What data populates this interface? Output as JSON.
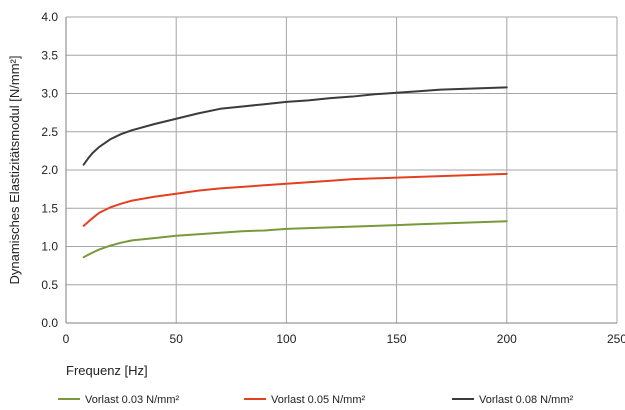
{
  "chart_data": {
    "type": "line",
    "xlabel": "Frequenz [Hz]",
    "ylabel": "Dynamisches Elastizitätsmodul [N/mm²]",
    "xlim": [
      0,
      250
    ],
    "ylim": [
      0,
      4.0
    ],
    "x_ticks": [
      "0",
      "50",
      "100",
      "150",
      "200",
      "250"
    ],
    "y_ticks": [
      "0.0",
      "0.5",
      "1.0",
      "1.5",
      "2.0",
      "2.5",
      "3.0",
      "3.5",
      "4.0"
    ],
    "grid": true,
    "legend_position": "bottom",
    "series": [
      {
        "name": "Vorlast 0.03 N/mm²",
        "color": "#779a3a",
        "x": [
          8,
          10,
          12,
          15,
          20,
          25,
          30,
          40,
          50,
          60,
          70,
          80,
          90,
          100,
          110,
          120,
          130,
          140,
          150,
          160,
          170,
          180,
          190,
          200
        ],
        "values": [
          0.86,
          0.89,
          0.92,
          0.96,
          1.01,
          1.05,
          1.08,
          1.11,
          1.14,
          1.16,
          1.18,
          1.2,
          1.21,
          1.23,
          1.24,
          1.25,
          1.26,
          1.27,
          1.28,
          1.29,
          1.3,
          1.31,
          1.32,
          1.33
        ]
      },
      {
        "name": "Vorlast 0.05 N/mm²",
        "color": "#e3401f",
        "x": [
          8,
          10,
          12,
          15,
          20,
          25,
          30,
          40,
          50,
          60,
          70,
          80,
          90,
          100,
          110,
          120,
          130,
          140,
          150,
          160,
          170,
          180,
          190,
          200
        ],
        "values": [
          1.27,
          1.32,
          1.37,
          1.44,
          1.51,
          1.56,
          1.6,
          1.65,
          1.69,
          1.73,
          1.76,
          1.78,
          1.8,
          1.82,
          1.84,
          1.86,
          1.88,
          1.89,
          1.9,
          1.91,
          1.92,
          1.93,
          1.94,
          1.95
        ]
      },
      {
        "name": "Vorlast 0.08 N/mm²",
        "color": "#3b3b3b",
        "x": [
          8,
          10,
          12,
          15,
          20,
          25,
          30,
          40,
          50,
          60,
          70,
          80,
          90,
          100,
          110,
          120,
          130,
          140,
          150,
          160,
          170,
          180,
          190,
          200
        ],
        "values": [
          2.07,
          2.15,
          2.22,
          2.3,
          2.4,
          2.47,
          2.52,
          2.6,
          2.67,
          2.74,
          2.8,
          2.83,
          2.86,
          2.89,
          2.91,
          2.94,
          2.96,
          2.99,
          3.01,
          3.03,
          3.05,
          3.06,
          3.07,
          3.08
        ]
      }
    ]
  }
}
